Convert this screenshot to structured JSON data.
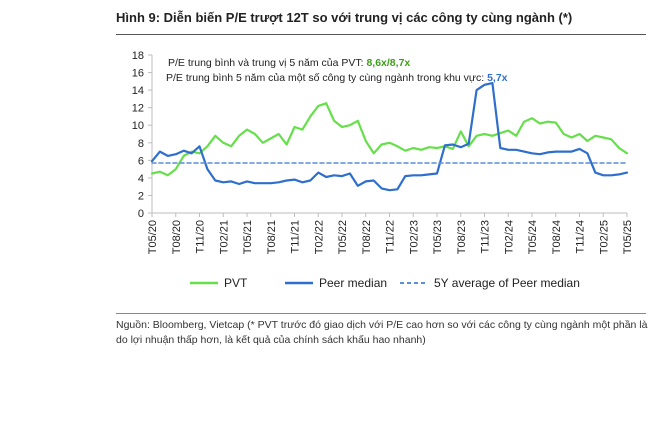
{
  "figure": {
    "title": "Hình 9: Diễn biến P/E trượt 12T so với trung vị các công ty cùng ngành (*)",
    "source": "Nguồn: Bloomberg, Vietcap (* PVT trước đó giao dịch với P/E cao hơn so với các công ty cùng ngành một phần là do lợi nhuận thấp hơn, là kết quả của chính sách khấu hao nhanh)"
  },
  "annotations": {
    "pvt_label": "P/E trung bình và trung vị 5 năm của PVT: ",
    "pvt_value": "8,6x/8,7x",
    "peer_label": "P/E trung bình 5 năm của một số công ty cùng ngành trong khu vực: ",
    "peer_value": "5,7x"
  },
  "colors": {
    "pvt": "#66e04a",
    "peer": "#2f6fcc",
    "average": "#5b8fd6",
    "axis": "#bdbdbd",
    "pvt_value": "#3e9e1c",
    "peer_value": "#2f6fcc"
  },
  "chart_data": {
    "type": "line",
    "title": "",
    "xlabel": "",
    "ylabel": "",
    "ylim": [
      0,
      18
    ],
    "yticks": [
      0,
      2,
      4,
      6,
      8,
      10,
      12,
      14,
      16,
      18
    ],
    "xlim": [
      "2020-05",
      "2025-05"
    ],
    "xticks": [
      "T05/20",
      "T08/20",
      "T11/20",
      "T02/21",
      "T05/21",
      "T08/21",
      "T11/21",
      "T02/22",
      "T05/22",
      "T08/22",
      "T11/22",
      "T02/23",
      "T05/23",
      "T08/23",
      "T11/23",
      "T02/24",
      "T05/24",
      "T08/24",
      "T11/24",
      "T02/25",
      "T05/25"
    ],
    "legend_position": "bottom",
    "grid": false,
    "series": [
      {
        "name": "PVT",
        "x": [
          "2020-05",
          "2020-06",
          "2020-07",
          "2020-08",
          "2020-09",
          "2020-10",
          "2020-11",
          "2020-12",
          "2021-01",
          "2021-02",
          "2021-03",
          "2021-04",
          "2021-05",
          "2021-06",
          "2021-07",
          "2021-08",
          "2021-09",
          "2021-10",
          "2021-11",
          "2021-12",
          "2022-01",
          "2022-02",
          "2022-03",
          "2022-04",
          "2022-05",
          "2022-06",
          "2022-07",
          "2022-08",
          "2022-09",
          "2022-10",
          "2022-11",
          "2022-12",
          "2023-01",
          "2023-02",
          "2023-03",
          "2023-04",
          "2023-05",
          "2023-06",
          "2023-07",
          "2023-08",
          "2023-09",
          "2023-10",
          "2023-11",
          "2023-12",
          "2024-01",
          "2024-02",
          "2024-03",
          "2024-04",
          "2024-05",
          "2024-06",
          "2024-07",
          "2024-08",
          "2024-09",
          "2024-10",
          "2024-11",
          "2024-12",
          "2025-01",
          "2025-02",
          "2025-03",
          "2025-04",
          "2025-05"
        ],
        "values": [
          4.5,
          4.7,
          4.3,
          5.0,
          6.5,
          7.0,
          6.8,
          7.6,
          8.8,
          8.0,
          7.6,
          8.8,
          9.5,
          9.0,
          8.0,
          8.5,
          9.0,
          7.8,
          9.8,
          9.5,
          11.0,
          12.2,
          12.5,
          10.5,
          9.8,
          10.0,
          10.5,
          8.2,
          6.8,
          7.8,
          8.0,
          7.6,
          7.1,
          7.4,
          7.2,
          7.5,
          7.4,
          7.6,
          7.3,
          9.3,
          7.6,
          8.8,
          9.0,
          8.8,
          9.1,
          9.4,
          8.8,
          10.4,
          10.8,
          10.2,
          10.4,
          10.3,
          9.0,
          8.6,
          9.0,
          8.2,
          8.8,
          8.6,
          8.4,
          7.4,
          6.8
        ]
      },
      {
        "name": "Peer median",
        "x": [
          "2020-05",
          "2020-06",
          "2020-07",
          "2020-08",
          "2020-09",
          "2020-10",
          "2020-11",
          "2020-12",
          "2021-01",
          "2021-02",
          "2021-03",
          "2021-04",
          "2021-05",
          "2021-06",
          "2021-07",
          "2021-08",
          "2021-09",
          "2021-10",
          "2021-11",
          "2021-12",
          "2022-01",
          "2022-02",
          "2022-03",
          "2022-04",
          "2022-05",
          "2022-06",
          "2022-07",
          "2022-08",
          "2022-09",
          "2022-10",
          "2022-11",
          "2022-12",
          "2023-01",
          "2023-02",
          "2023-03",
          "2023-04",
          "2023-05",
          "2023-06",
          "2023-07",
          "2023-08",
          "2023-09",
          "2023-10",
          "2023-11",
          "2023-12",
          "2024-01",
          "2024-02",
          "2024-03",
          "2024-04",
          "2024-05",
          "2024-06",
          "2024-07",
          "2024-08",
          "2024-09",
          "2024-10",
          "2024-11",
          "2024-12",
          "2025-01",
          "2025-02",
          "2025-03",
          "2025-04",
          "2025-05"
        ],
        "values": [
          5.9,
          7.0,
          6.5,
          6.7,
          7.1,
          6.8,
          7.6,
          5.0,
          3.7,
          3.5,
          3.6,
          3.3,
          3.6,
          3.4,
          3.4,
          3.4,
          3.5,
          3.7,
          3.8,
          3.5,
          3.7,
          4.6,
          4.1,
          4.3,
          4.2,
          4.5,
          3.1,
          3.6,
          3.7,
          2.8,
          2.6,
          2.7,
          4.2,
          4.3,
          4.3,
          4.4,
          4.5,
          7.7,
          7.8,
          7.5,
          7.9,
          14.0,
          14.6,
          14.8,
          7.4,
          7.2,
          7.2,
          7.0,
          6.8,
          6.7,
          6.9,
          7.0,
          7.0,
          7.0,
          7.3,
          6.8,
          4.6,
          4.3,
          4.3,
          4.4,
          4.6
        ]
      },
      {
        "name": "5Y average of Peer median",
        "x": [
          "2020-05",
          "2025-05"
        ],
        "values": [
          5.7,
          5.7
        ]
      }
    ]
  }
}
